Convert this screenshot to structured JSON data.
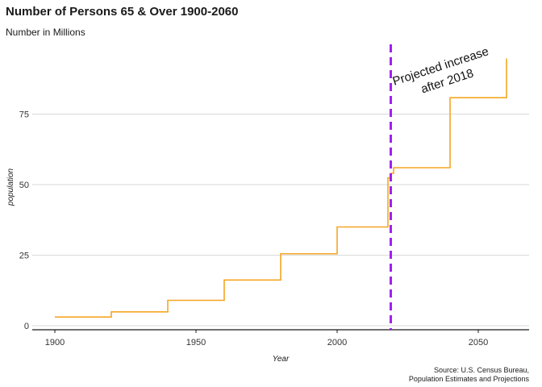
{
  "chart_data": {
    "type": "line",
    "step": true,
    "title": "Number of Persons 65 & Over 1900-2060",
    "subtitle": "Number in Millions",
    "xlabel": "Year",
    "ylabel": "population",
    "caption_line1": "Source: U.S. Census Bureau,",
    "caption_line2": "Population Estimates and Projections",
    "xlim": [
      1900,
      2060
    ],
    "ylim": [
      0,
      94
    ],
    "x_ticks": [
      1900,
      1950,
      2000,
      2050
    ],
    "y_ticks": [
      0,
      25,
      50,
      75
    ],
    "grid": "horizontal",
    "line_color": "#f5a623",
    "vline": {
      "x": 2019,
      "color": "#a020f0",
      "style": "dashed"
    },
    "annotation_line1": "Projected increase",
    "annotation_line2": "after 2018",
    "x": [
      1900,
      1920,
      1940,
      1960,
      1980,
      2000,
      2018,
      2019,
      2020,
      2040,
      2060
    ],
    "values": [
      3.1,
      4.9,
      9.0,
      16.2,
      25.5,
      35.0,
      52.4,
      54.0,
      56.0,
      80.8,
      94.7
    ]
  }
}
